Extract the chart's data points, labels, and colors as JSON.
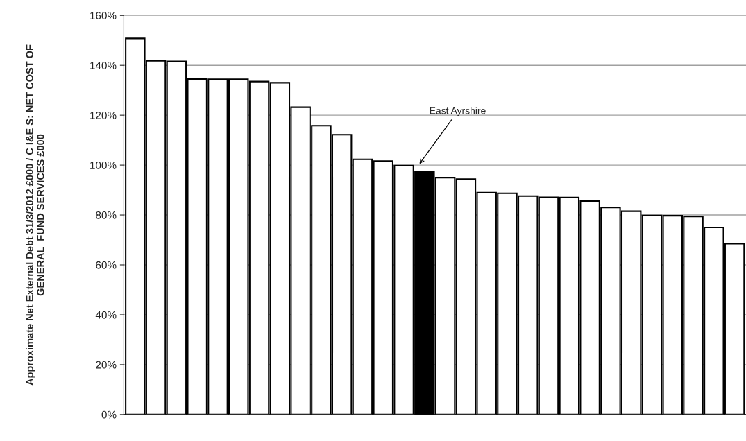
{
  "chart_data": {
    "type": "bar",
    "ylabel": "Approximate Net External Debt 31/3/2012 £000 / C I&E S: NET COST OF\nGENERAL  FUND SERVICES £000",
    "categories": [
      null,
      null,
      null,
      null,
      null,
      null,
      null,
      null,
      null,
      null,
      null,
      null,
      null,
      null,
      null,
      null,
      null,
      null,
      null,
      null,
      null,
      null,
      null,
      null,
      null,
      null,
      null,
      null,
      null,
      null
    ],
    "values": [
      150.8,
      141.8,
      141.6,
      134.5,
      134.4,
      134.4,
      133.5,
      133.0,
      123.2,
      115.8,
      112.2,
      102.3,
      101.6,
      99.8,
      97.4,
      95.0,
      94.4,
      89.0,
      88.7,
      87.6,
      87.1,
      87.0,
      85.6,
      83.0,
      81.5,
      79.8,
      79.7,
      79.4,
      75.0,
      68.5
    ],
    "colors": [
      "#ffffff",
      "#ffffff",
      "#ffffff",
      "#ffffff",
      "#ffffff",
      "#ffffff",
      "#ffffff",
      "#ffffff",
      "#ffffff",
      "#ffffff",
      "#ffffff",
      "#ffffff",
      "#ffffff",
      "#ffffff",
      "#000000",
      "#ffffff",
      "#ffffff",
      "#ffffff",
      "#ffffff",
      "#ffffff",
      "#ffffff",
      "#ffffff",
      "#ffffff",
      "#ffffff",
      "#ffffff",
      "#ffffff",
      "#ffffff",
      "#ffffff",
      "#ffffff",
      "#ffffff"
    ],
    "ylim": [
      0,
      160
    ],
    "yticks": [
      {
        "value": 0,
        "label": "0%"
      },
      {
        "value": 20,
        "label": "20%"
      },
      {
        "value": 40,
        "label": "40%"
      },
      {
        "value": 60,
        "label": "60%"
      },
      {
        "value": 80,
        "label": "80%"
      },
      {
        "value": 100,
        "label": "100%"
      },
      {
        "value": 120,
        "label": "120%"
      },
      {
        "value": 140,
        "label": "140%"
      },
      {
        "value": 160,
        "label": "160%"
      }
    ],
    "grid": "y",
    "tick_labels": "y",
    "legend": false,
    "annotations": [
      "East Ayrshire"
    ]
  }
}
